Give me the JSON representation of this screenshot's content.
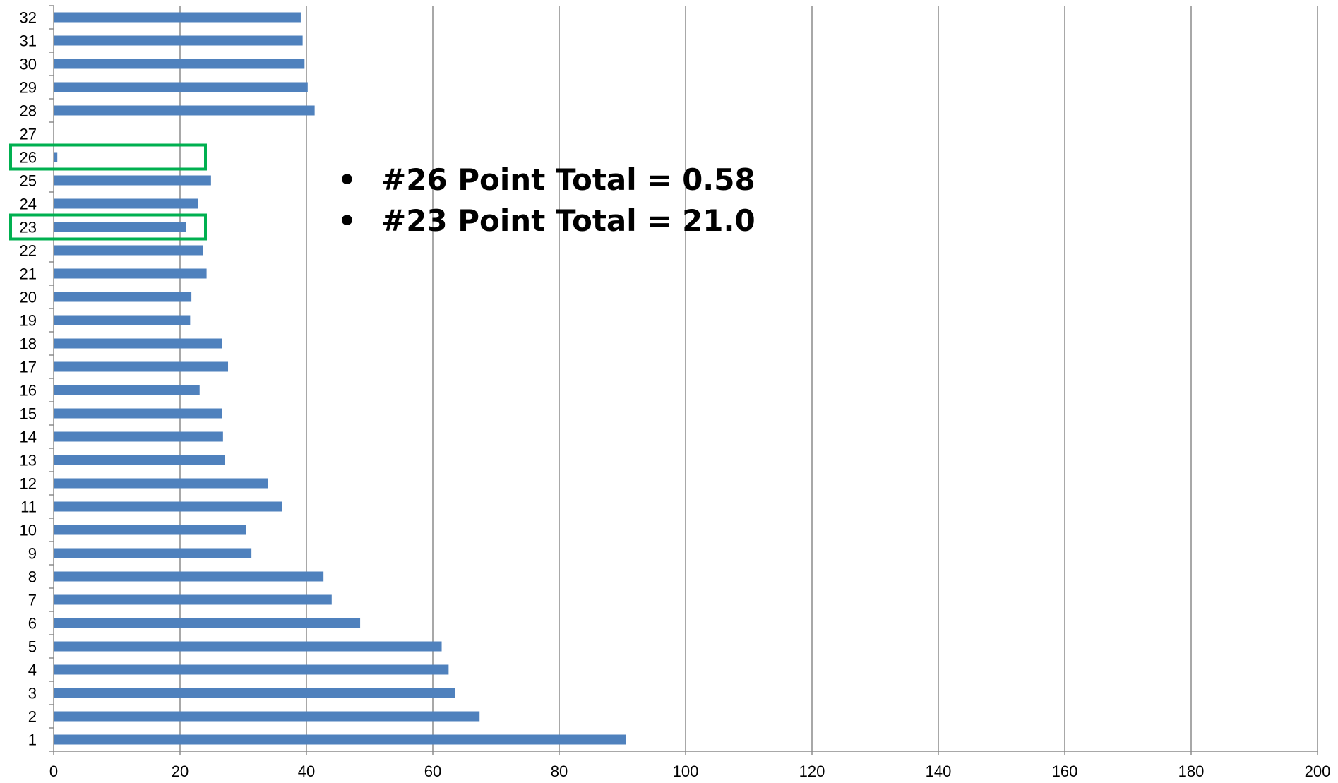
{
  "chart_data": {
    "type": "bar",
    "orientation": "horizontal",
    "categories": [
      "1",
      "2",
      "3",
      "4",
      "5",
      "6",
      "7",
      "8",
      "9",
      "10",
      "11",
      "12",
      "13",
      "14",
      "15",
      "16",
      "17",
      "18",
      "19",
      "20",
      "21",
      "22",
      "23",
      "24",
      "25",
      "26",
      "27",
      "28",
      "29",
      "30",
      "31",
      "32"
    ],
    "values": [
      90.6,
      67.4,
      63.5,
      62.5,
      61.4,
      48.5,
      44.0,
      42.7,
      31.3,
      30.5,
      36.2,
      33.9,
      27.1,
      26.8,
      26.7,
      23.1,
      27.6,
      26.6,
      21.6,
      21.8,
      24.2,
      23.6,
      21.0,
      22.8,
      24.9,
      0.58,
      0,
      41.3,
      40.2,
      39.7,
      39.4,
      39.1
    ],
    "xlim": [
      0,
      200
    ],
    "x_ticks": [
      0,
      20,
      40,
      60,
      80,
      100,
      120,
      140,
      160,
      180,
      200
    ],
    "grid": "vertical",
    "bar_color": "#4f81bd",
    "highlight_color": "#00b050",
    "highlighted_categories": [
      "26",
      "23"
    ],
    "annotations": [
      {
        "bullet": "•",
        "text": "#26 Point Total = 0.58"
      },
      {
        "bullet": "•",
        "text": "#23 Point Total = 21.0"
      }
    ]
  }
}
